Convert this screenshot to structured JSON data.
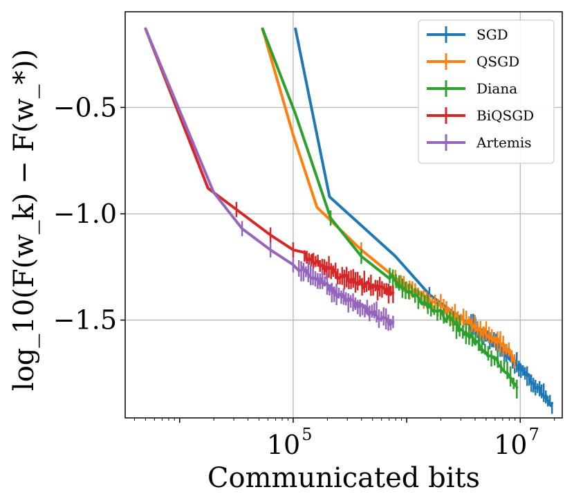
{
  "chart_data": {
    "type": "line",
    "title": "",
    "xlabel": "Communicated bits",
    "ylabel": "log_10(F(w_k) − F(w_*))",
    "x_scale": "log10",
    "xlim_log10": [
      3.52,
      7.37
    ],
    "ylim": [
      -1.96,
      -0.05
    ],
    "x_ticks": [
      {
        "exp": 5,
        "base": "10",
        "sup": "5"
      },
      {
        "exp": 7,
        "base": "10",
        "sup": "7"
      }
    ],
    "y_ticks": [
      {
        "value": -0.5,
        "label": "−0.5"
      },
      {
        "value": -1.0,
        "label": "−1.0"
      },
      {
        "value": -1.5,
        "label": "−1.5"
      }
    ],
    "grid": true,
    "legend_position": "top-right",
    "series": [
      {
        "name": "SGD",
        "color": "#1f77b4",
        "points": [
          [
            5.02,
            -0.13
          ],
          [
            5.32,
            -0.92
          ],
          [
            5.9,
            -1.2
          ],
          [
            6.2,
            -1.38
          ],
          [
            6.5,
            -1.5
          ],
          [
            6.8,
            -1.62
          ],
          [
            7.05,
            -1.75
          ],
          [
            7.2,
            -1.85
          ],
          [
            7.28,
            -1.9
          ]
        ],
        "err_start_log10": 6.55
      },
      {
        "name": "QSGD",
        "color": "#ff7f0e",
        "points": [
          [
            4.73,
            -0.13
          ],
          [
            5.0,
            -0.63
          ],
          [
            5.21,
            -0.97
          ],
          [
            5.6,
            -1.17
          ],
          [
            5.9,
            -1.3
          ],
          [
            6.2,
            -1.41
          ],
          [
            6.5,
            -1.5
          ],
          [
            6.7,
            -1.56
          ],
          [
            6.85,
            -1.62
          ],
          [
            6.95,
            -1.68
          ]
        ],
        "err_start_log10": 5.95
      },
      {
        "name": "Diana",
        "color": "#2ca02c",
        "points": [
          [
            4.73,
            -0.13
          ],
          [
            5.02,
            -0.53
          ],
          [
            5.33,
            -1.02
          ],
          [
            5.6,
            -1.2
          ],
          [
            5.9,
            -1.32
          ],
          [
            6.2,
            -1.43
          ],
          [
            6.5,
            -1.55
          ],
          [
            6.75,
            -1.67
          ],
          [
            6.9,
            -1.75
          ],
          [
            6.97,
            -1.81
          ]
        ],
        "err_start_log10": 5.85
      },
      {
        "name": "BiQSGD",
        "color": "#d62728",
        "points": [
          [
            3.7,
            -0.13
          ],
          [
            4.25,
            -0.88
          ],
          [
            4.5,
            -0.98
          ],
          [
            4.8,
            -1.1
          ],
          [
            5.0,
            -1.17
          ],
          [
            5.2,
            -1.22
          ],
          [
            5.4,
            -1.29
          ],
          [
            5.6,
            -1.33
          ],
          [
            5.75,
            -1.35
          ],
          [
            5.88,
            -1.37
          ]
        ],
        "err_start_log10": 5.1
      },
      {
        "name": "Artemis",
        "color": "#9467bd",
        "points": [
          [
            3.7,
            -0.13
          ],
          [
            4.3,
            -0.9
          ],
          [
            4.55,
            -1.07
          ],
          [
            4.8,
            -1.17
          ],
          [
            5.0,
            -1.24
          ],
          [
            5.2,
            -1.3
          ],
          [
            5.4,
            -1.38
          ],
          [
            5.6,
            -1.44
          ],
          [
            5.75,
            -1.48
          ],
          [
            5.88,
            -1.52
          ]
        ],
        "err_start_log10": 5.05
      }
    ]
  }
}
